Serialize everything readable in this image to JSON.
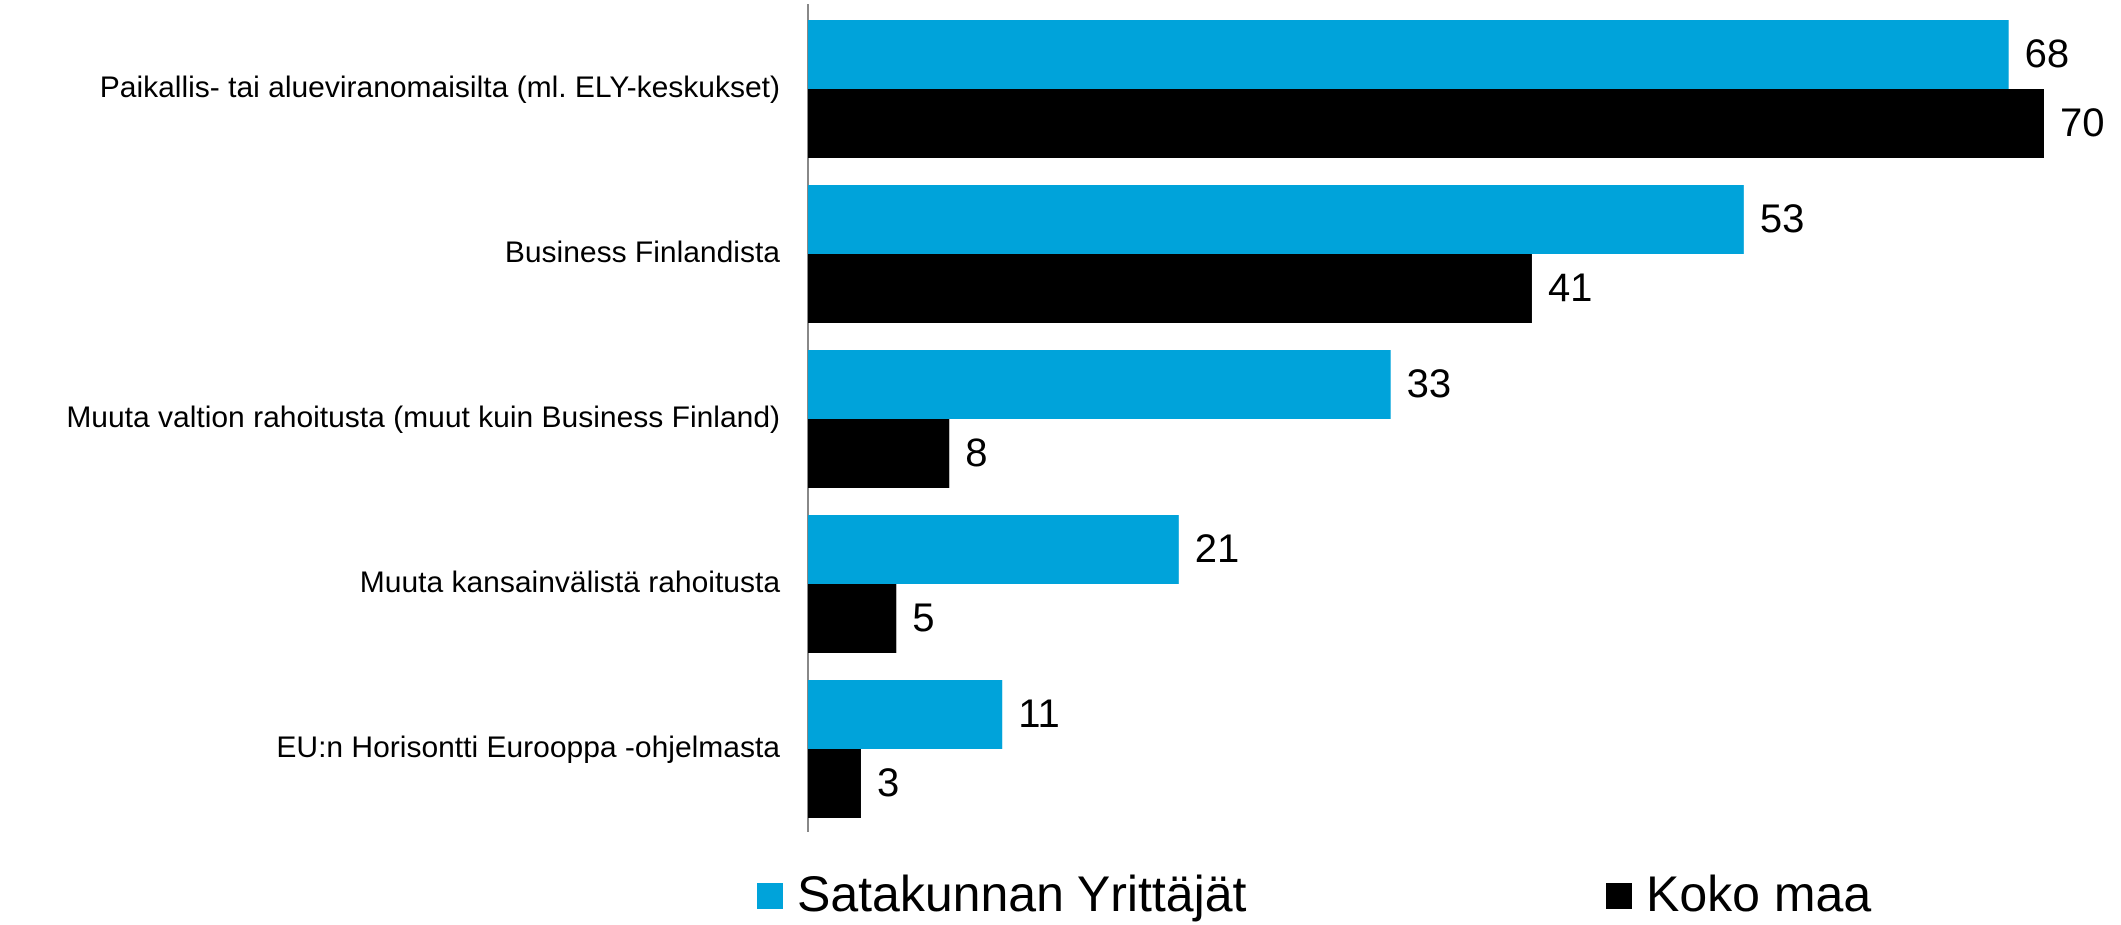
{
  "chart_data": {
    "type": "bar",
    "orientation": "horizontal",
    "categories": [
      "Paikallis- tai alueviranomaisilta (ml. ELY-keskukset)",
      "Business Finlandista",
      "Muuta valtion rahoitusta (muut kuin Business Finland)",
      "Muuta kansainvälistä rahoitusta",
      "EU:n Horisontti Eurooppa -ohjelmasta"
    ],
    "series": [
      {
        "name": "Satakunnan Yrittäjät",
        "color": "#00a3da",
        "values": [
          68,
          53,
          33,
          21,
          11
        ]
      },
      {
        "name": "Koko maa",
        "color": "#000000",
        "values": [
          70,
          41,
          8,
          5,
          3
        ]
      }
    ],
    "xlim": [
      0,
      70
    ]
  }
}
